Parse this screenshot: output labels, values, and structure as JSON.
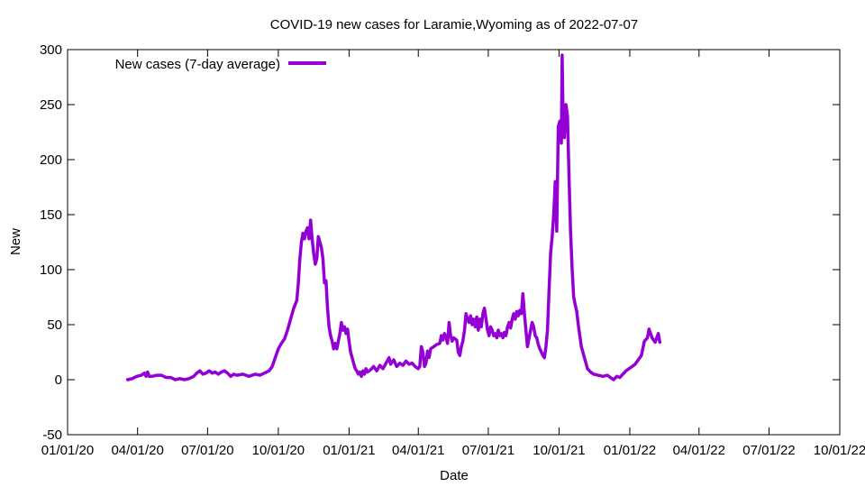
{
  "chart_data": {
    "type": "line",
    "title": "COVID-19 new cases for Laramie,Wyoming as of 2022-07-07",
    "xlabel": "Date",
    "ylabel": "New",
    "ylim": [
      -50,
      300
    ],
    "y_ticks": [
      -50,
      0,
      50,
      100,
      150,
      200,
      250,
      300
    ],
    "x_tick_labels": [
      "01/01/20",
      "04/01/20",
      "07/01/20",
      "10/01/20",
      "01/01/21",
      "04/01/21",
      "07/01/21",
      "10/01/21",
      "01/01/22",
      "04/01/22",
      "07/01/22",
      "10/01/22"
    ],
    "x_unit": "days since 01/01/20",
    "xlim": [
      0,
      1004
    ],
    "x_tick_days": [
      0,
      91,
      182,
      274,
      366,
      456,
      547,
      639,
      731,
      821,
      912,
      1004
    ],
    "grid": false,
    "legend_position": "top-left",
    "series": [
      {
        "name": "New cases (7-day average)",
        "color": "#9400d3",
        "points": [
          [
            78,
            0
          ],
          [
            84,
            1
          ],
          [
            90,
            3
          ],
          [
            96,
            4
          ],
          [
            100,
            6
          ],
          [
            102,
            3
          ],
          [
            104,
            7
          ],
          [
            106,
            3
          ],
          [
            110,
            3
          ],
          [
            116,
            4
          ],
          [
            122,
            4
          ],
          [
            128,
            2
          ],
          [
            134,
            2
          ],
          [
            140,
            0
          ],
          [
            146,
            1
          ],
          [
            152,
            0
          ],
          [
            158,
            1
          ],
          [
            164,
            3
          ],
          [
            168,
            6
          ],
          [
            172,
            8
          ],
          [
            176,
            5
          ],
          [
            180,
            6
          ],
          [
            184,
            8
          ],
          [
            188,
            6
          ],
          [
            192,
            7
          ],
          [
            196,
            5
          ],
          [
            200,
            7
          ],
          [
            204,
            8
          ],
          [
            208,
            6
          ],
          [
            212,
            3
          ],
          [
            216,
            5
          ],
          [
            220,
            4
          ],
          [
            228,
            5
          ],
          [
            236,
            3
          ],
          [
            244,
            5
          ],
          [
            250,
            4
          ],
          [
            256,
            6
          ],
          [
            262,
            8
          ],
          [
            266,
            12
          ],
          [
            270,
            20
          ],
          [
            274,
            28
          ],
          [
            278,
            33
          ],
          [
            282,
            37
          ],
          [
            286,
            45
          ],
          [
            290,
            55
          ],
          [
            294,
            65
          ],
          [
            298,
            72
          ],
          [
            300,
            88
          ],
          [
            302,
            110
          ],
          [
            304,
            125
          ],
          [
            306,
            133
          ],
          [
            308,
            128
          ],
          [
            310,
            135
          ],
          [
            312,
            138
          ],
          [
            314,
            128
          ],
          [
            316,
            145
          ],
          [
            318,
            128
          ],
          [
            320,
            115
          ],
          [
            322,
            105
          ],
          [
            324,
            110
          ],
          [
            326,
            130
          ],
          [
            328,
            125
          ],
          [
            330,
            120
          ],
          [
            332,
            110
          ],
          [
            334,
            88
          ],
          [
            336,
            90
          ],
          [
            338,
            65
          ],
          [
            340,
            48
          ],
          [
            342,
            40
          ],
          [
            344,
            35
          ],
          [
            346,
            28
          ],
          [
            348,
            33
          ],
          [
            350,
            28
          ],
          [
            352,
            35
          ],
          [
            354,
            42
          ],
          [
            356,
            52
          ],
          [
            358,
            45
          ],
          [
            360,
            48
          ],
          [
            362,
            42
          ],
          [
            364,
            46
          ],
          [
            366,
            35
          ],
          [
            368,
            25
          ],
          [
            370,
            20
          ],
          [
            372,
            15
          ],
          [
            374,
            10
          ],
          [
            376,
            8
          ],
          [
            378,
            5
          ],
          [
            380,
            7
          ],
          [
            382,
            3
          ],
          [
            384,
            8
          ],
          [
            386,
            5
          ],
          [
            388,
            10
          ],
          [
            390,
            7
          ],
          [
            394,
            9
          ],
          [
            398,
            12
          ],
          [
            402,
            8
          ],
          [
            406,
            13
          ],
          [
            410,
            10
          ],
          [
            414,
            15
          ],
          [
            418,
            20
          ],
          [
            420,
            14
          ],
          [
            424,
            18
          ],
          [
            428,
            12
          ],
          [
            432,
            15
          ],
          [
            436,
            13
          ],
          [
            440,
            17
          ],
          [
            444,
            14
          ],
          [
            448,
            15
          ],
          [
            452,
            12
          ],
          [
            456,
            10
          ],
          [
            458,
            12
          ],
          [
            460,
            30
          ],
          [
            462,
            25
          ],
          [
            464,
            12
          ],
          [
            466,
            15
          ],
          [
            468,
            26
          ],
          [
            470,
            20
          ],
          [
            472,
            28
          ],
          [
            476,
            30
          ],
          [
            480,
            32
          ],
          [
            484,
            33
          ],
          [
            486,
            40
          ],
          [
            488,
            36
          ],
          [
            490,
            42
          ],
          [
            492,
            38
          ],
          [
            494,
            33
          ],
          [
            496,
            52
          ],
          [
            498,
            40
          ],
          [
            500,
            35
          ],
          [
            502,
            38
          ],
          [
            506,
            36
          ],
          [
            508,
            25
          ],
          [
            510,
            22
          ],
          [
            512,
            30
          ],
          [
            514,
            35
          ],
          [
            516,
            45
          ],
          [
            518,
            60
          ],
          [
            520,
            55
          ],
          [
            522,
            52
          ],
          [
            524,
            58
          ],
          [
            526,
            50
          ],
          [
            528,
            55
          ],
          [
            530,
            48
          ],
          [
            532,
            57
          ],
          [
            534,
            45
          ],
          [
            536,
            55
          ],
          [
            538,
            48
          ],
          [
            540,
            60
          ],
          [
            542,
            65
          ],
          [
            544,
            55
          ],
          [
            546,
            45
          ],
          [
            548,
            40
          ],
          [
            550,
            48
          ],
          [
            552,
            45
          ],
          [
            554,
            40
          ],
          [
            556,
            42
          ],
          [
            558,
            38
          ],
          [
            560,
            45
          ],
          [
            562,
            40
          ],
          [
            564,
            42
          ],
          [
            566,
            38
          ],
          [
            568,
            43
          ],
          [
            570,
            40
          ],
          [
            572,
            48
          ],
          [
            574,
            52
          ],
          [
            576,
            47
          ],
          [
            578,
            55
          ],
          [
            580,
            60
          ],
          [
            582,
            55
          ],
          [
            584,
            62
          ],
          [
            586,
            58
          ],
          [
            588,
            63
          ],
          [
            590,
            60
          ],
          [
            592,
            78
          ],
          [
            594,
            60
          ],
          [
            596,
            45
          ],
          [
            598,
            30
          ],
          [
            600,
            38
          ],
          [
            602,
            45
          ],
          [
            604,
            52
          ],
          [
            606,
            48
          ],
          [
            608,
            40
          ],
          [
            610,
            38
          ],
          [
            612,
            32
          ],
          [
            614,
            28
          ],
          [
            616,
            25
          ],
          [
            618,
            22
          ],
          [
            620,
            20
          ],
          [
            622,
            30
          ],
          [
            624,
            45
          ],
          [
            626,
            80
          ],
          [
            628,
            115
          ],
          [
            630,
            130
          ],
          [
            632,
            150
          ],
          [
            634,
            180
          ],
          [
            636,
            135
          ],
          [
            638,
            230
          ],
          [
            640,
            235
          ],
          [
            642,
            215
          ],
          [
            643,
            295
          ],
          [
            644,
            250
          ],
          [
            646,
            220
          ],
          [
            648,
            250
          ],
          [
            650,
            240
          ],
          [
            652,
            185
          ],
          [
            654,
            135
          ],
          [
            656,
            100
          ],
          [
            658,
            75
          ],
          [
            660,
            68
          ],
          [
            662,
            62
          ],
          [
            664,
            50
          ],
          [
            666,
            40
          ],
          [
            668,
            30
          ],
          [
            670,
            25
          ],
          [
            672,
            20
          ],
          [
            674,
            15
          ],
          [
            676,
            10
          ],
          [
            680,
            7
          ],
          [
            684,
            5
          ],
          [
            690,
            4
          ],
          [
            696,
            3
          ],
          [
            702,
            4
          ],
          [
            706,
            2
          ],
          [
            710,
            0
          ],
          [
            714,
            3
          ],
          [
            718,
            2
          ],
          [
            722,
            5
          ],
          [
            726,
            8
          ],
          [
            730,
            10
          ],
          [
            734,
            12
          ],
          [
            738,
            14
          ],
          [
            742,
            18
          ],
          [
            746,
            22
          ],
          [
            750,
            35
          ],
          [
            754,
            38
          ],
          [
            756,
            46
          ],
          [
            760,
            38
          ],
          [
            764,
            34
          ],
          [
            768,
            42
          ],
          [
            770,
            34
          ]
        ]
      }
    ]
  }
}
